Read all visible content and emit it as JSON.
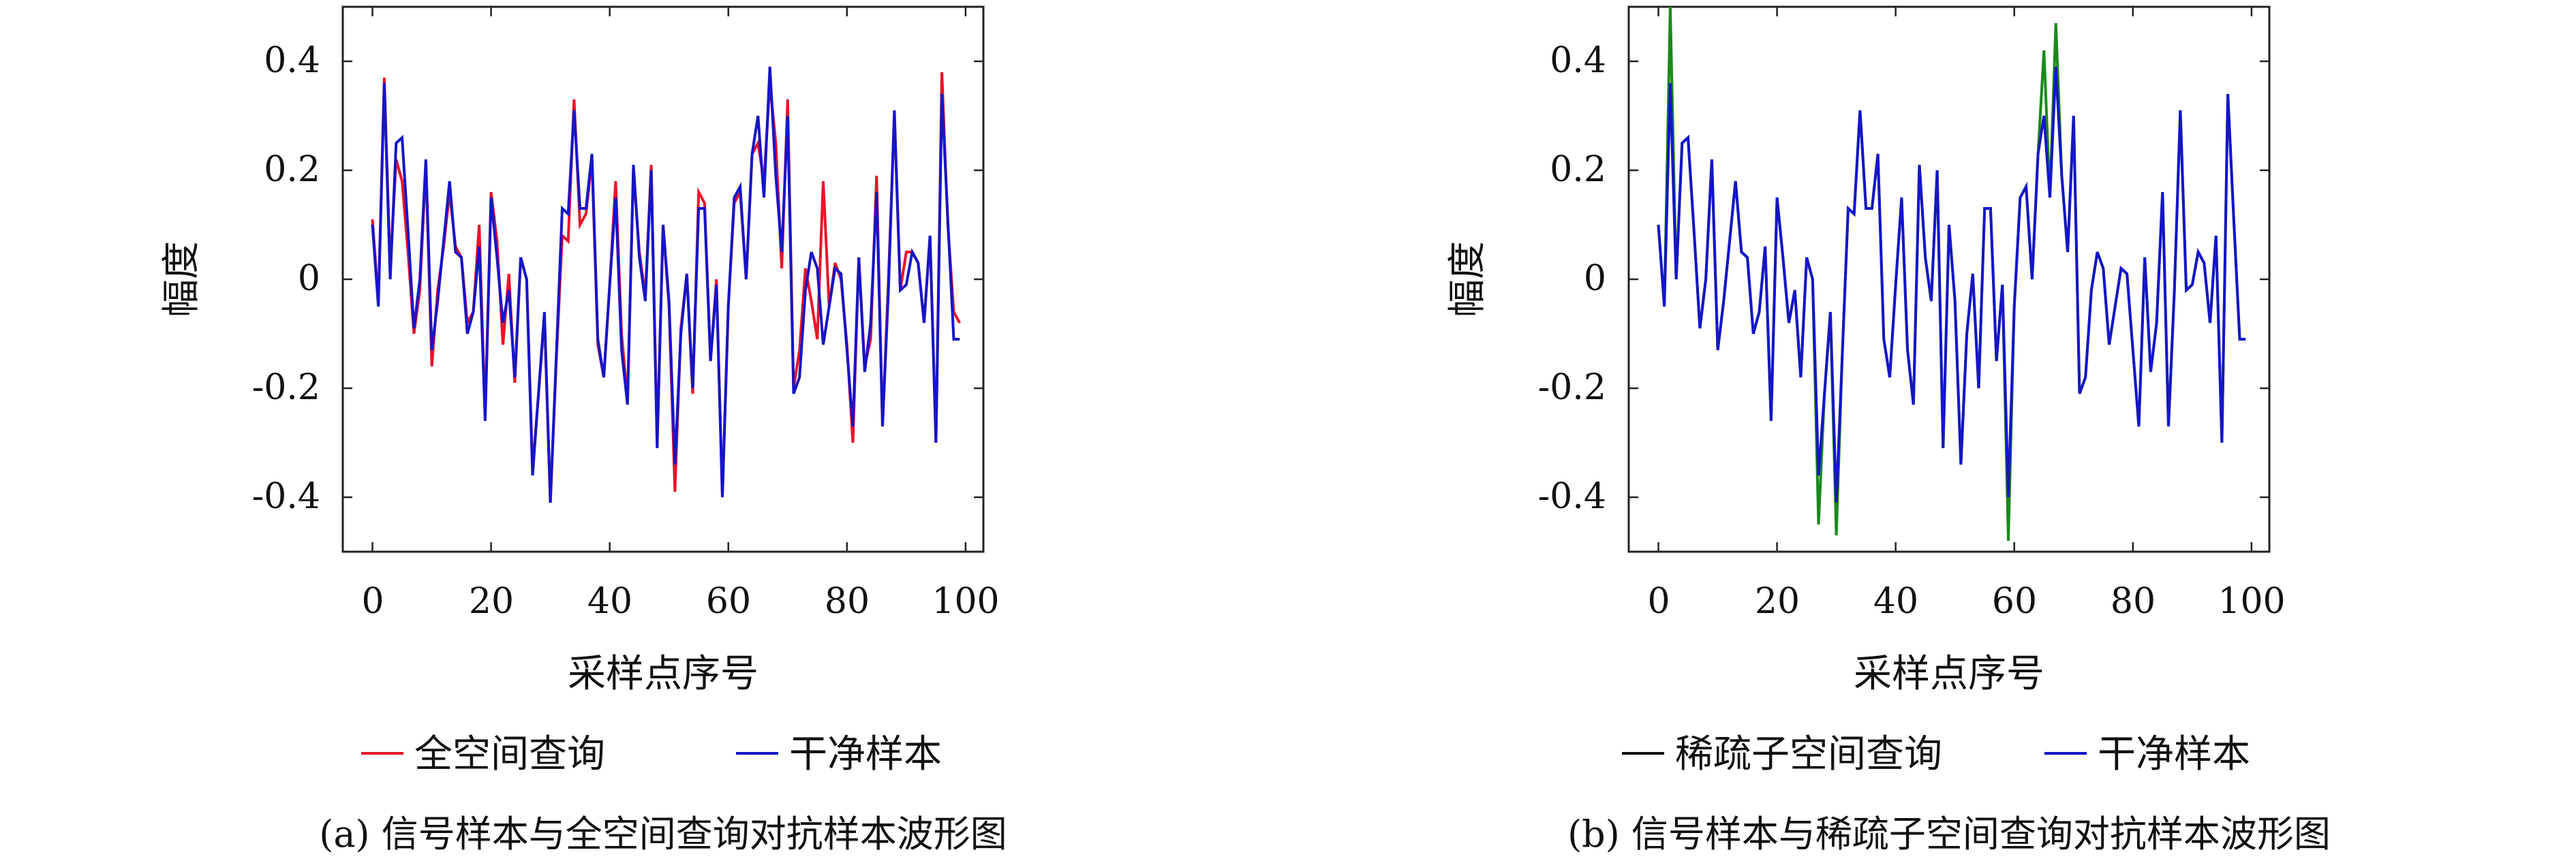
{
  "chart_data": [
    {
      "type": "line",
      "caption": "(a) 信号样本与全空间查询对抗样本波形图",
      "xlabel": "采样点序号",
      "ylabel": "幅度",
      "xlim": [
        -5,
        103
      ],
      "ylim": [
        -0.5,
        0.5
      ],
      "xticks": [
        0,
        20,
        40,
        60,
        80,
        100
      ],
      "yticks": [
        0.4,
        0.2,
        0,
        -0.2,
        -0.4
      ],
      "xtick_labels": [
        "0",
        "20",
        "40",
        "60",
        "80",
        "100"
      ],
      "ytick_labels": [
        "0.4",
        "0.2",
        "0",
        "-0.2",
        "-0.4"
      ],
      "grid": false,
      "legend_position": "bottom",
      "series": [
        {
          "name": "全空间查询",
          "color": "#e8142a",
          "values": [
            0.11,
            -0.04,
            0.37,
            0.02,
            0.22,
            0.18,
            0.05,
            -0.1,
            -0.02,
            0.21,
            -0.16,
            -0.02,
            0.06,
            0.16,
            0.06,
            0.04,
            -0.08,
            -0.06,
            0.1,
            -0.25,
            0.16,
            0.07,
            -0.12,
            0.01,
            -0.19,
            0.04,
            0.0,
            -0.35,
            -0.21,
            -0.07,
            -0.41,
            -0.15,
            0.08,
            0.07,
            0.33,
            0.1,
            0.12,
            0.22,
            -0.12,
            -0.18,
            -0.01,
            0.18,
            -0.1,
            -0.22,
            0.2,
            0.05,
            -0.03,
            0.21,
            -0.3,
            0.1,
            -0.05,
            -0.39,
            -0.09,
            0.01,
            -0.21,
            0.16,
            0.14,
            -0.15,
            0.0,
            -0.4,
            -0.05,
            0.14,
            0.16,
            0.0,
            0.23,
            0.25,
            0.18,
            0.36,
            0.25,
            0.02,
            0.33,
            -0.2,
            -0.13,
            0.02,
            -0.04,
            -0.11,
            0.18,
            -0.05,
            0.03,
            0.0,
            -0.12,
            -0.3,
            0.04,
            -0.16,
            -0.11,
            0.19,
            -0.27,
            0.0,
            0.3,
            -0.02,
            0.05,
            0.05,
            0.03,
            -0.08,
            0.08,
            -0.3,
            0.38,
            0.1,
            -0.06,
            -0.08
          ]
        },
        {
          "name": "干净样本",
          "color": "#1515c8",
          "values": [
            0.1,
            -0.05,
            0.36,
            0.0,
            0.25,
            0.26,
            0.09,
            -0.09,
            0.0,
            0.22,
            -0.13,
            -0.04,
            0.07,
            0.18,
            0.05,
            0.04,
            -0.1,
            -0.06,
            0.06,
            -0.26,
            0.15,
            0.04,
            -0.08,
            -0.02,
            -0.18,
            0.04,
            0.0,
            -0.36,
            -0.21,
            -0.06,
            -0.41,
            -0.14,
            0.13,
            0.12,
            0.31,
            0.13,
            0.13,
            0.23,
            -0.11,
            -0.18,
            -0.01,
            0.15,
            -0.13,
            -0.23,
            0.21,
            0.04,
            -0.04,
            0.2,
            -0.31,
            0.1,
            -0.04,
            -0.34,
            -0.1,
            0.01,
            -0.2,
            0.13,
            0.13,
            -0.15,
            -0.01,
            -0.4,
            -0.05,
            0.15,
            0.17,
            0.0,
            0.23,
            0.3,
            0.15,
            0.39,
            0.19,
            0.05,
            0.3,
            -0.21,
            -0.18,
            -0.02,
            0.05,
            0.02,
            -0.12,
            -0.05,
            0.02,
            0.01,
            -0.13,
            -0.27,
            0.04,
            -0.17,
            -0.08,
            0.16,
            -0.27,
            -0.02,
            0.31,
            -0.02,
            -0.01,
            0.05,
            0.03,
            -0.08,
            0.08,
            -0.3,
            0.34,
            0.11,
            -0.11,
            -0.11
          ]
        }
      ]
    },
    {
      "type": "line",
      "caption": "(b) 信号样本与稀疏子空间查询对抗样本波形图",
      "xlabel": "采样点序号",
      "ylabel": "幅度",
      "xlim": [
        -5,
        103
      ],
      "ylim": [
        -0.5,
        0.5
      ],
      "xticks": [
        0,
        20,
        40,
        60,
        80,
        100
      ],
      "yticks": [
        0.4,
        0.2,
        0,
        -0.2,
        -0.4
      ],
      "xtick_labels": [
        "0",
        "20",
        "40",
        "60",
        "80",
        "100"
      ],
      "ytick_labels": [
        "0.4",
        "0.2",
        "0",
        "-0.2",
        "-0.4"
      ],
      "grid": false,
      "legend_position": "bottom",
      "series": [
        {
          "name": "稀疏子空间查询",
          "color": "#1a8a1a",
          "values": [
            0.1,
            -0.05,
            0.5,
            0.0,
            0.25,
            0.26,
            0.09,
            -0.09,
            0.0,
            0.22,
            -0.13,
            -0.04,
            0.07,
            0.18,
            0.05,
            0.04,
            -0.1,
            -0.06,
            0.06,
            -0.26,
            0.15,
            0.04,
            -0.08,
            -0.02,
            -0.18,
            0.04,
            0.0,
            -0.45,
            -0.21,
            -0.06,
            -0.47,
            -0.14,
            0.13,
            0.12,
            0.31,
            0.13,
            0.13,
            0.23,
            -0.11,
            -0.18,
            -0.01,
            0.15,
            -0.13,
            -0.23,
            0.21,
            0.04,
            -0.04,
            0.2,
            -0.31,
            0.1,
            -0.04,
            -0.34,
            -0.1,
            0.01,
            -0.2,
            0.13,
            0.13,
            -0.15,
            -0.01,
            -0.48,
            -0.05,
            0.15,
            0.17,
            0.0,
            0.23,
            0.42,
            0.15,
            0.47,
            0.19,
            0.05,
            0.3,
            -0.21,
            -0.18,
            -0.02,
            0.05,
            0.02,
            -0.12,
            -0.05,
            0.02,
            0.01,
            -0.13,
            -0.27,
            0.04,
            -0.17,
            -0.08,
            0.16,
            -0.27,
            -0.02,
            0.31,
            -0.02,
            -0.01,
            0.05,
            0.03,
            -0.08,
            0.08,
            -0.3,
            0.34,
            0.11,
            -0.11,
            -0.11
          ]
        },
        {
          "name": "干净样本",
          "color": "#1515c8",
          "values": [
            0.1,
            -0.05,
            0.36,
            0.0,
            0.25,
            0.26,
            0.09,
            -0.09,
            0.0,
            0.22,
            -0.13,
            -0.04,
            0.07,
            0.18,
            0.05,
            0.04,
            -0.1,
            -0.06,
            0.06,
            -0.26,
            0.15,
            0.04,
            -0.08,
            -0.02,
            -0.18,
            0.04,
            0.0,
            -0.36,
            -0.21,
            -0.06,
            -0.41,
            -0.14,
            0.13,
            0.12,
            0.31,
            0.13,
            0.13,
            0.23,
            -0.11,
            -0.18,
            -0.01,
            0.15,
            -0.13,
            -0.23,
            0.21,
            0.04,
            -0.04,
            0.2,
            -0.31,
            0.1,
            -0.04,
            -0.34,
            -0.1,
            0.01,
            -0.2,
            0.13,
            0.13,
            -0.15,
            -0.01,
            -0.4,
            -0.05,
            0.15,
            0.17,
            0.0,
            0.23,
            0.3,
            0.15,
            0.39,
            0.19,
            0.05,
            0.3,
            -0.21,
            -0.18,
            -0.02,
            0.05,
            0.02,
            -0.12,
            -0.05,
            0.02,
            0.01,
            -0.13,
            -0.27,
            0.04,
            -0.17,
            -0.08,
            0.16,
            -0.27,
            -0.02,
            0.31,
            -0.02,
            -0.01,
            0.05,
            0.03,
            -0.08,
            0.08,
            -0.3,
            0.34,
            0.11,
            -0.11,
            -0.11
          ]
        }
      ]
    }
  ]
}
